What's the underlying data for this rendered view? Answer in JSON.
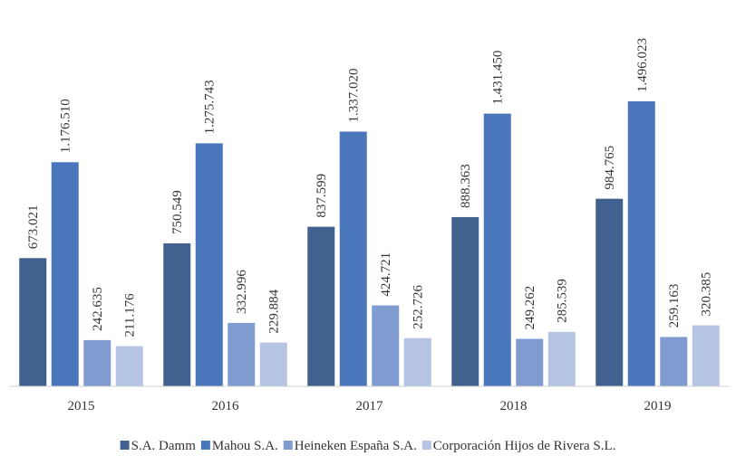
{
  "chart_data": {
    "type": "bar",
    "categories": [
      "2015",
      "2016",
      "2017",
      "2018",
      "2019"
    ],
    "series": [
      {
        "name": "S.A. Damm",
        "color": "#41618f",
        "values": [
          673021,
          750549,
          837599,
          888363,
          984765
        ],
        "value_labels": [
          "673.021",
          "750.549",
          "837.599",
          "888.363",
          "984.765"
        ]
      },
      {
        "name": "Mahou S.A.",
        "color": "#4a77bb",
        "values": [
          1176510,
          1275743,
          1337020,
          1431450,
          1496023
        ],
        "value_labels": [
          "1.176.510",
          "1.275.743",
          "1.337.020",
          "1.431.450",
          "1.496.023"
        ]
      },
      {
        "name": "Heineken España S.A.",
        "color": "#7f9bd0",
        "values": [
          242635,
          332996,
          424721,
          249262,
          259163
        ],
        "value_labels": [
          "242.635",
          "332.996",
          "424.721",
          "249.262",
          "259.163"
        ]
      },
      {
        "name": "Corporación Hijos de Rivera S.L.",
        "color": "#b6c4e3",
        "values": [
          211176,
          229884,
          252726,
          285539,
          320385
        ],
        "value_labels": [
          "211.176",
          "229.884",
          "252.726",
          "285.539",
          "320.385"
        ]
      }
    ]
  }
}
